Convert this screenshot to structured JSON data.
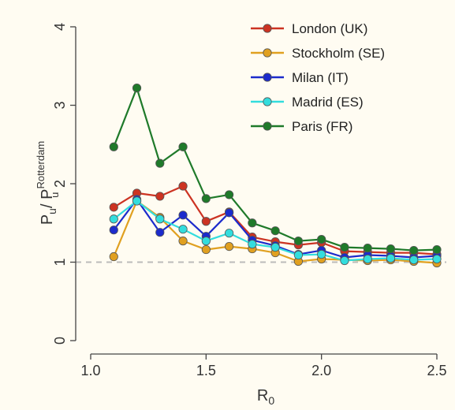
{
  "chart_data": {
    "type": "line",
    "title": "",
    "xlabel": {
      "main": "R",
      "sub": "0"
    },
    "ylabel": {
      "main": "P",
      "main_sub": "u",
      "slash": "/ ",
      "denom": "P",
      "denom_sup": "Rotterdam",
      "denom_sub": "u"
    },
    "xlim": [
      1.0,
      2.5
    ],
    "ylim": [
      0,
      4
    ],
    "xticks": [
      "1.0",
      "1.5",
      "2.0",
      "2.5"
    ],
    "yticks": [
      "0",
      "1",
      "2",
      "3",
      "4"
    ],
    "grid": false,
    "reference_line": {
      "y": 1,
      "style": "dashed"
    },
    "legend_position": "top-right",
    "x": [
      1.1,
      1.2,
      1.3,
      1.4,
      1.5,
      1.6,
      1.7,
      1.8,
      1.9,
      2.0,
      2.1,
      2.2,
      2.3,
      2.4,
      2.5
    ],
    "series": [
      {
        "name": "London (UK)",
        "color": "#cc3322",
        "values": [
          1.7,
          1.88,
          1.84,
          1.97,
          1.52,
          1.64,
          1.32,
          1.26,
          1.22,
          1.25,
          1.14,
          1.13,
          1.12,
          1.12,
          1.1
        ]
      },
      {
        "name": "Stockholm (SE)",
        "color": "#e0a020",
        "values": [
          1.07,
          1.78,
          1.57,
          1.27,
          1.16,
          1.2,
          1.17,
          1.12,
          1.01,
          1.04,
          1.03,
          1.02,
          1.03,
          1.01,
          0.99
        ]
      },
      {
        "name": "Milan (IT)",
        "color": "#1c2bcc",
        "values": [
          1.41,
          1.8,
          1.38,
          1.6,
          1.33,
          1.63,
          1.28,
          1.21,
          1.1,
          1.15,
          1.06,
          1.09,
          1.08,
          1.06,
          1.08
        ]
      },
      {
        "name": "Madrid (ES)",
        "color": "#33dddd",
        "values": [
          1.55,
          1.78,
          1.55,
          1.42,
          1.27,
          1.37,
          1.23,
          1.19,
          1.09,
          1.1,
          1.02,
          1.04,
          1.05,
          1.03,
          1.04
        ]
      },
      {
        "name": "Paris (FR)",
        "color": "#1f7a2a",
        "values": [
          2.47,
          3.22,
          2.26,
          2.47,
          1.81,
          1.86,
          1.5,
          1.4,
          1.27,
          1.29,
          1.19,
          1.18,
          1.17,
          1.15,
          1.16
        ]
      }
    ]
  }
}
